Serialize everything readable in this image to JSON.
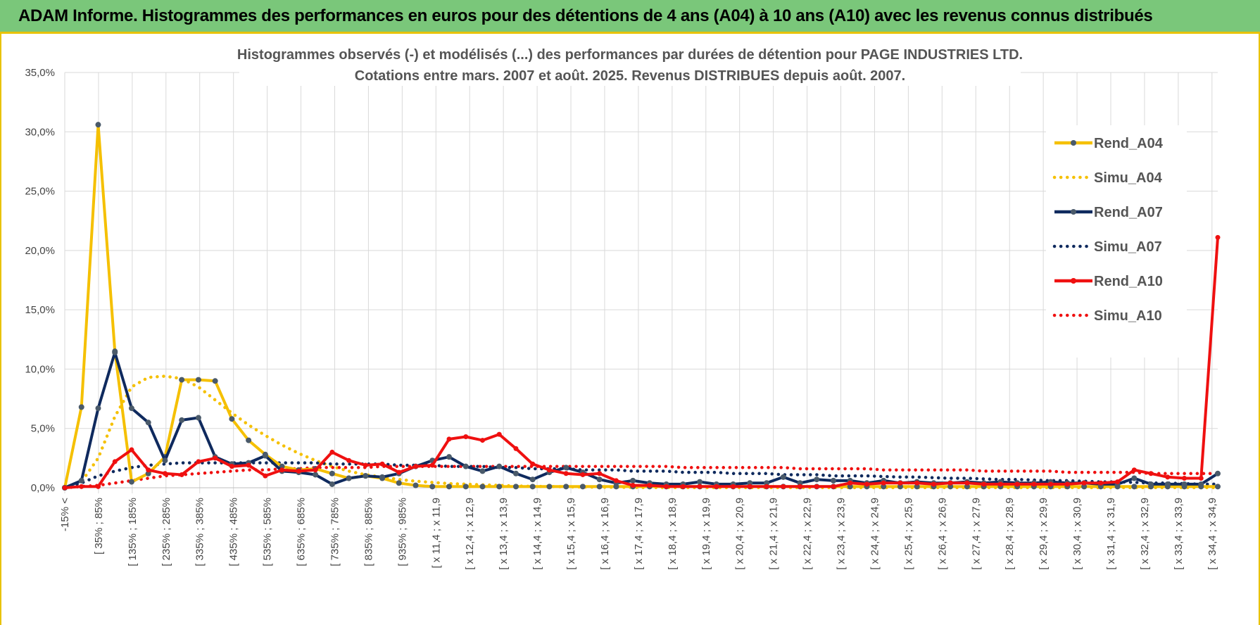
{
  "header": {
    "title": "ADAM Informe. Histogrammes des performances en euros pour des détentions de 4 ans (A04) à 10 ans (A10) avec les revenus connus distribués"
  },
  "chart_data": {
    "type": "line",
    "title": "Histogrammes observés (-) et modélisés (...) des performances par durées de détention pour PAGE INDUSTRIES LTD.",
    "subtitle": "Cotations entre mars. 2007 et août. 2025. Revenus DISTRIBUES depuis août. 2007.",
    "xlabel": "",
    "ylabel": "",
    "ylim": [
      0,
      35
    ],
    "yticks": [
      0,
      5,
      10,
      15,
      20,
      25,
      30,
      35
    ],
    "ytick_labels": [
      "0,0%",
      "5,0%",
      "10,0%",
      "15,0%",
      "20,0%",
      "25,0%",
      "30,0%",
      "35,0%"
    ],
    "grid": true,
    "legend_position": "right",
    "x_tick_labels": [
      "-15% <",
      "[ 35% ; 85%",
      "[ 135% ; 185%",
      "[ 235% ; 285%",
      "[ 335% ; 385%",
      "[ 435% ; 485%",
      "[ 535% ; 585%",
      "[ 635% ; 685%",
      "[ 735% ; 785%",
      "[ 835% ; 885%",
      "[ 935% ; 985%",
      "[ x 11,4 ; x 11,9",
      "[ x 12,4 ; x 12,9",
      "[ x 13,4 ; x 13,9",
      "[ x 14,4 ; x 14,9",
      "[ x 15,4 ; x 15,9",
      "[ x 16,4 ; x 16,9",
      "[ x 17,4 ; x 17,9",
      "[ x 18,4 ; x 18,9",
      "[ x 19,4 ; x 19,9",
      "[ x 20,4 ; x 20,9",
      "[ x 21,4 ; x 21,9",
      "[ x 22,4 ; x 22,9",
      "[ x 23,4 ; x 23,9",
      "[ x 24,4 ; x 24,9",
      "[ x 25,4 ; x 25,9",
      "[ x 26,4 ; x 26,9",
      "[ x 27,4 ; x 27,9",
      "[ x 28,4 ; x 28,9",
      "[ x 29,4 ; x 29,9",
      "[ x 30,4 ; x 30,9",
      "[ x 31,4 ; x 31,9",
      "[ x 32,4 ; x 32,9",
      "[ x 33,4 ; x 33,9",
      "[ x 34,4 ; x 34,9"
    ],
    "series": [
      {
        "name": "Rend_A04",
        "style": "solid",
        "color": "#f5c000",
        "values": [
          0,
          6.8,
          30.6,
          11.5,
          0.5,
          1.2,
          2.6,
          9.1,
          9.1,
          9.0,
          5.8,
          4.0,
          2.8,
          1.8,
          1.5,
          1.6,
          1.2,
          0.8,
          1.0,
          0.8,
          0.4,
          0.2,
          0.1,
          0.1,
          0.1,
          0.1,
          0.1,
          0.1,
          0.1,
          0.1,
          0.1,
          0.1,
          0.1,
          0.1,
          0.1,
          0.1,
          0.1,
          0.1,
          0.1,
          0.1,
          0.1,
          0.1,
          0.1,
          0.1,
          0.1,
          0.1,
          0.1,
          0.1,
          0.1,
          0.1,
          0.1,
          0.1,
          0.1,
          0.1,
          0.1,
          0.1,
          0.1,
          0.1,
          0.1,
          0.1,
          0.1,
          0.1,
          0.1,
          0.1,
          0.1,
          0.1,
          0.1,
          0.1,
          0.1,
          0.1
        ]
      },
      {
        "name": "Simu_A04",
        "style": "dotted",
        "color": "#f5c000",
        "values": [
          0,
          0.5,
          2.5,
          6.0,
          8.5,
          9.3,
          9.4,
          9.2,
          8.5,
          7.4,
          6.3,
          5.3,
          4.4,
          3.6,
          2.9,
          2.3,
          1.8,
          1.4,
          1.1,
          0.9,
          0.7,
          0.55,
          0.45,
          0.35,
          0.3,
          0.25,
          0.2,
          0.15,
          0.12,
          0.1,
          0.08,
          0.06,
          0.05,
          0.04,
          0.03,
          0.02,
          0.02,
          0.02,
          0.01,
          0.01,
          0.01,
          0.01,
          0.01,
          0.01,
          0.01,
          0.01,
          0.01,
          0.01,
          0.01,
          0.01,
          0.01,
          0.01,
          0.01,
          0.01,
          0.01,
          0.01,
          0.01,
          0.01,
          0.01,
          0.01,
          0.01,
          0.01,
          0.01,
          0.01,
          0.01,
          0.01,
          0.01,
          0.01,
          0.01,
          0.01
        ]
      },
      {
        "name": "Rend_A07",
        "style": "solid",
        "color": "#0f2a5e",
        "values": [
          0,
          0.6,
          6.7,
          11.4,
          6.7,
          5.5,
          2.3,
          5.7,
          5.9,
          2.6,
          2.0,
          2.1,
          2.7,
          1.4,
          1.3,
          1.1,
          0.3,
          0.8,
          1.0,
          0.9,
          1.2,
          1.8,
          2.3,
          2.6,
          1.8,
          1.4,
          1.8,
          1.2,
          0.7,
          1.3,
          1.7,
          1.3,
          0.7,
          0.4,
          0.6,
          0.4,
          0.3,
          0.3,
          0.5,
          0.3,
          0.3,
          0.4,
          0.4,
          0.9,
          0.4,
          0.7,
          0.6,
          0.6,
          0.4,
          0.6,
          0.4,
          0.5,
          0.4,
          0.4,
          0.5,
          0.4,
          0.5,
          0.4,
          0.4,
          0.5,
          0.4,
          0.4,
          0.3,
          0.3,
          0.8,
          0.3,
          0.3,
          0.3,
          0.3,
          1.2
        ]
      },
      {
        "name": "Simu_A07",
        "style": "dotted",
        "color": "#0f2a5e",
        "values": [
          0,
          0.4,
          1.0,
          1.4,
          1.7,
          1.9,
          2.0,
          2.1,
          2.1,
          2.1,
          2.1,
          2.1,
          2.1,
          2.1,
          2.1,
          2.1,
          2.0,
          2.0,
          2.0,
          2.0,
          1.9,
          1.9,
          1.9,
          1.8,
          1.8,
          1.8,
          1.7,
          1.7,
          1.6,
          1.6,
          1.6,
          1.5,
          1.5,
          1.5,
          1.4,
          1.4,
          1.4,
          1.3,
          1.3,
          1.3,
          1.2,
          1.2,
          1.2,
          1.1,
          1.1,
          1.1,
          1.0,
          1.0,
          1.0,
          0.95,
          0.9,
          0.9,
          0.85,
          0.8,
          0.8,
          0.75,
          0.7,
          0.7,
          0.65,
          0.6,
          0.6,
          0.55,
          0.5,
          0.5,
          0.45,
          0.4,
          0.4,
          0.35,
          0.3,
          0.3
        ]
      },
      {
        "name": "Rend_A10",
        "style": "solid",
        "color": "#ef1010",
        "values": [
          0,
          0.1,
          0.1,
          2.2,
          3.2,
          1.5,
          1.2,
          1.1,
          2.2,
          2.5,
          1.8,
          1.9,
          1.0,
          1.5,
          1.4,
          1.5,
          3.0,
          2.3,
          1.9,
          2.0,
          1.3,
          1.8,
          1.9,
          4.1,
          4.3,
          4.0,
          4.5,
          3.3,
          2.0,
          1.5,
          1.2,
          1.1,
          1.2,
          0.6,
          0.2,
          0.2,
          0.1,
          0.1,
          0.1,
          0.1,
          0.1,
          0.1,
          0.1,
          0.1,
          0.1,
          0.1,
          0.1,
          0.4,
          0.3,
          0.4,
          0.4,
          0.4,
          0.3,
          0.4,
          0.4,
          0.3,
          0.3,
          0.3,
          0.3,
          0.3,
          0.3,
          0.4,
          0.4,
          0.5,
          1.5,
          1.2,
          0.9,
          0.8,
          0.8,
          21.1
        ]
      },
      {
        "name": "Simu_A10",
        "style": "dotted",
        "color": "#ef1010",
        "values": [
          0,
          0.1,
          0.2,
          0.4,
          0.6,
          0.8,
          1.0,
          1.1,
          1.2,
          1.3,
          1.4,
          1.5,
          1.5,
          1.6,
          1.6,
          1.7,
          1.7,
          1.7,
          1.7,
          1.8,
          1.8,
          1.8,
          1.8,
          1.8,
          1.8,
          1.8,
          1.8,
          1.8,
          1.8,
          1.8,
          1.8,
          1.8,
          1.8,
          1.8,
          1.8,
          1.8,
          1.8,
          1.7,
          1.7,
          1.7,
          1.7,
          1.7,
          1.7,
          1.7,
          1.6,
          1.6,
          1.6,
          1.6,
          1.6,
          1.5,
          1.5,
          1.5,
          1.5,
          1.5,
          1.5,
          1.4,
          1.4,
          1.4,
          1.4,
          1.4,
          1.3,
          1.3,
          1.3,
          1.3,
          1.3,
          1.2,
          1.2,
          1.2,
          1.2,
          1.2
        ]
      }
    ]
  }
}
